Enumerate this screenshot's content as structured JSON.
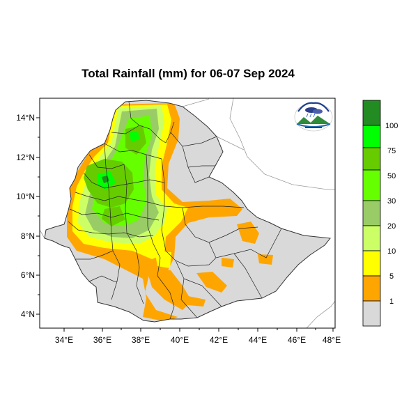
{
  "title": "Total Rainfall (mm) for 06-07 Sep 2024",
  "map": {
    "region": "Ethiopia",
    "lon_range": [
      33.0,
      48.0
    ],
    "lat_range": [
      3.2,
      15.1
    ],
    "x_ticks": [
      "34°E",
      "36°E",
      "38°E",
      "40°E",
      "42°E",
      "44°E",
      "46°E",
      "48°E"
    ],
    "y_ticks": [
      "14°N",
      "12°N",
      "10°N",
      "8°N",
      "6°N",
      "4°N"
    ],
    "logo": "ethiopian-meteorology-institute-logo"
  },
  "colorbar": {
    "levels": [
      "1",
      "5",
      "10",
      "20",
      "30",
      "50",
      "75",
      "100"
    ],
    "colors": [
      "#d9d9d9",
      "#ffa500",
      "#ffff00",
      "#ccff66",
      "#99cc66",
      "#66ff00",
      "#66cc00",
      "#00ff00",
      "#228b22"
    ]
  }
}
